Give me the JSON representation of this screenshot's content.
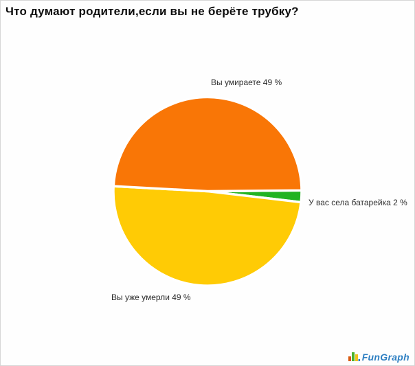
{
  "chart_data": {
    "type": "pie",
    "title": "Что думают родители,если вы не берёте трубку?",
    "legend_position": "none",
    "labels_style": "outside-callout-text",
    "layout": {
      "start_angle_deg": -0.5,
      "direction": "clockwise",
      "separator_color": "#ffffff"
    },
    "slices": [
      {
        "key": "battery-died",
        "label": "У вас села батарейка",
        "value_pct": 2,
        "color": "#22b322",
        "display": "У вас села батарейка 2 %"
      },
      {
        "key": "already-dead",
        "label": "Вы уже умерли",
        "value_pct": 49,
        "color": "#ffcb05",
        "display": "Вы уже умерли 49 %"
      },
      {
        "key": "dying",
        "label": "Вы умираете",
        "value_pct": 49,
        "color": "#f97606",
        "display": "Вы умираете 49 %"
      }
    ]
  },
  "watermark": {
    "text": "FunGraph",
    "brand_color": "#2e7fc2",
    "icon_bar_colors": [
      "#d95b12",
      "#4cb12c",
      "#f0c11b",
      "#2e7fc2"
    ]
  }
}
